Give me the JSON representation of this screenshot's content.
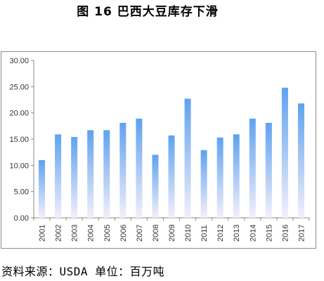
{
  "figure": {
    "title": "图 16 巴西大豆库存下滑"
  },
  "source": {
    "text": "资料来源：USDA 单位：百万吨"
  },
  "chart_data": {
    "type": "bar",
    "categories": [
      "2001",
      "2002",
      "2003",
      "2004",
      "2005",
      "2006",
      "2007",
      "2008",
      "2009",
      "2010",
      "2011",
      "2012",
      "2013",
      "2014",
      "2015",
      "2016",
      "2017"
    ],
    "values": [
      11.0,
      15.9,
      15.4,
      16.7,
      16.7,
      18.1,
      18.9,
      12.0,
      15.7,
      22.7,
      12.9,
      15.3,
      15.9,
      18.9,
      18.1,
      24.8,
      21.8
    ],
    "ylim": [
      0,
      30
    ],
    "yticks": [
      "0.00",
      "5.00",
      "10.00",
      "15.00",
      "20.00",
      "25.00",
      "30.00"
    ],
    "title": "",
    "xlabel": "",
    "ylabel": "",
    "grid": false,
    "legend": "none",
    "colors": {
      "bar_top": "#5ea2ef",
      "bar_bottom": "#f3effa",
      "axis": "#888888",
      "text": "#333333"
    }
  }
}
